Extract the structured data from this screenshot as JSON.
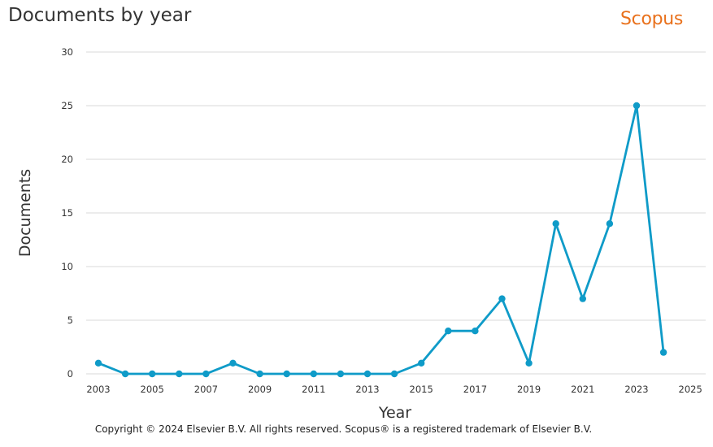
{
  "header": {
    "title": "Documents by year",
    "brand": "Scopus",
    "brand_color": "#e9711c"
  },
  "footer": {
    "copyright": "Copyright © 2024 Elsevier B.V. All rights reserved. Scopus® is a registered trademark of Elsevier B.V."
  },
  "chart_data": {
    "type": "line",
    "title": "Documents by year",
    "xlabel": "Year",
    "ylabel": "Documents",
    "x": [
      2003,
      2004,
      2005,
      2006,
      2007,
      2008,
      2009,
      2010,
      2011,
      2012,
      2013,
      2014,
      2015,
      2016,
      2017,
      2018,
      2019,
      2020,
      2021,
      2022,
      2023,
      2024
    ],
    "series": [
      {
        "values": [
          1,
          0,
          0,
          0,
          0,
          1,
          0,
          0,
          0,
          0,
          0,
          0,
          1,
          4,
          4,
          7,
          1,
          14,
          7,
          14,
          25,
          2
        ],
        "color": "#0f9bc8"
      }
    ],
    "xticks": [
      "2003",
      "2005",
      "2007",
      "2009",
      "2011",
      "2013",
      "2015",
      "2017",
      "2019",
      "2021",
      "2023",
      "2025"
    ],
    "yticks": [
      "0",
      "5",
      "10",
      "15",
      "20",
      "25",
      "30"
    ],
    "xlim": [
      2003,
      2025
    ],
    "ylim": [
      0,
      30
    ],
    "grid": true,
    "grid_color": "#d9d9d9",
    "legend": "none"
  }
}
